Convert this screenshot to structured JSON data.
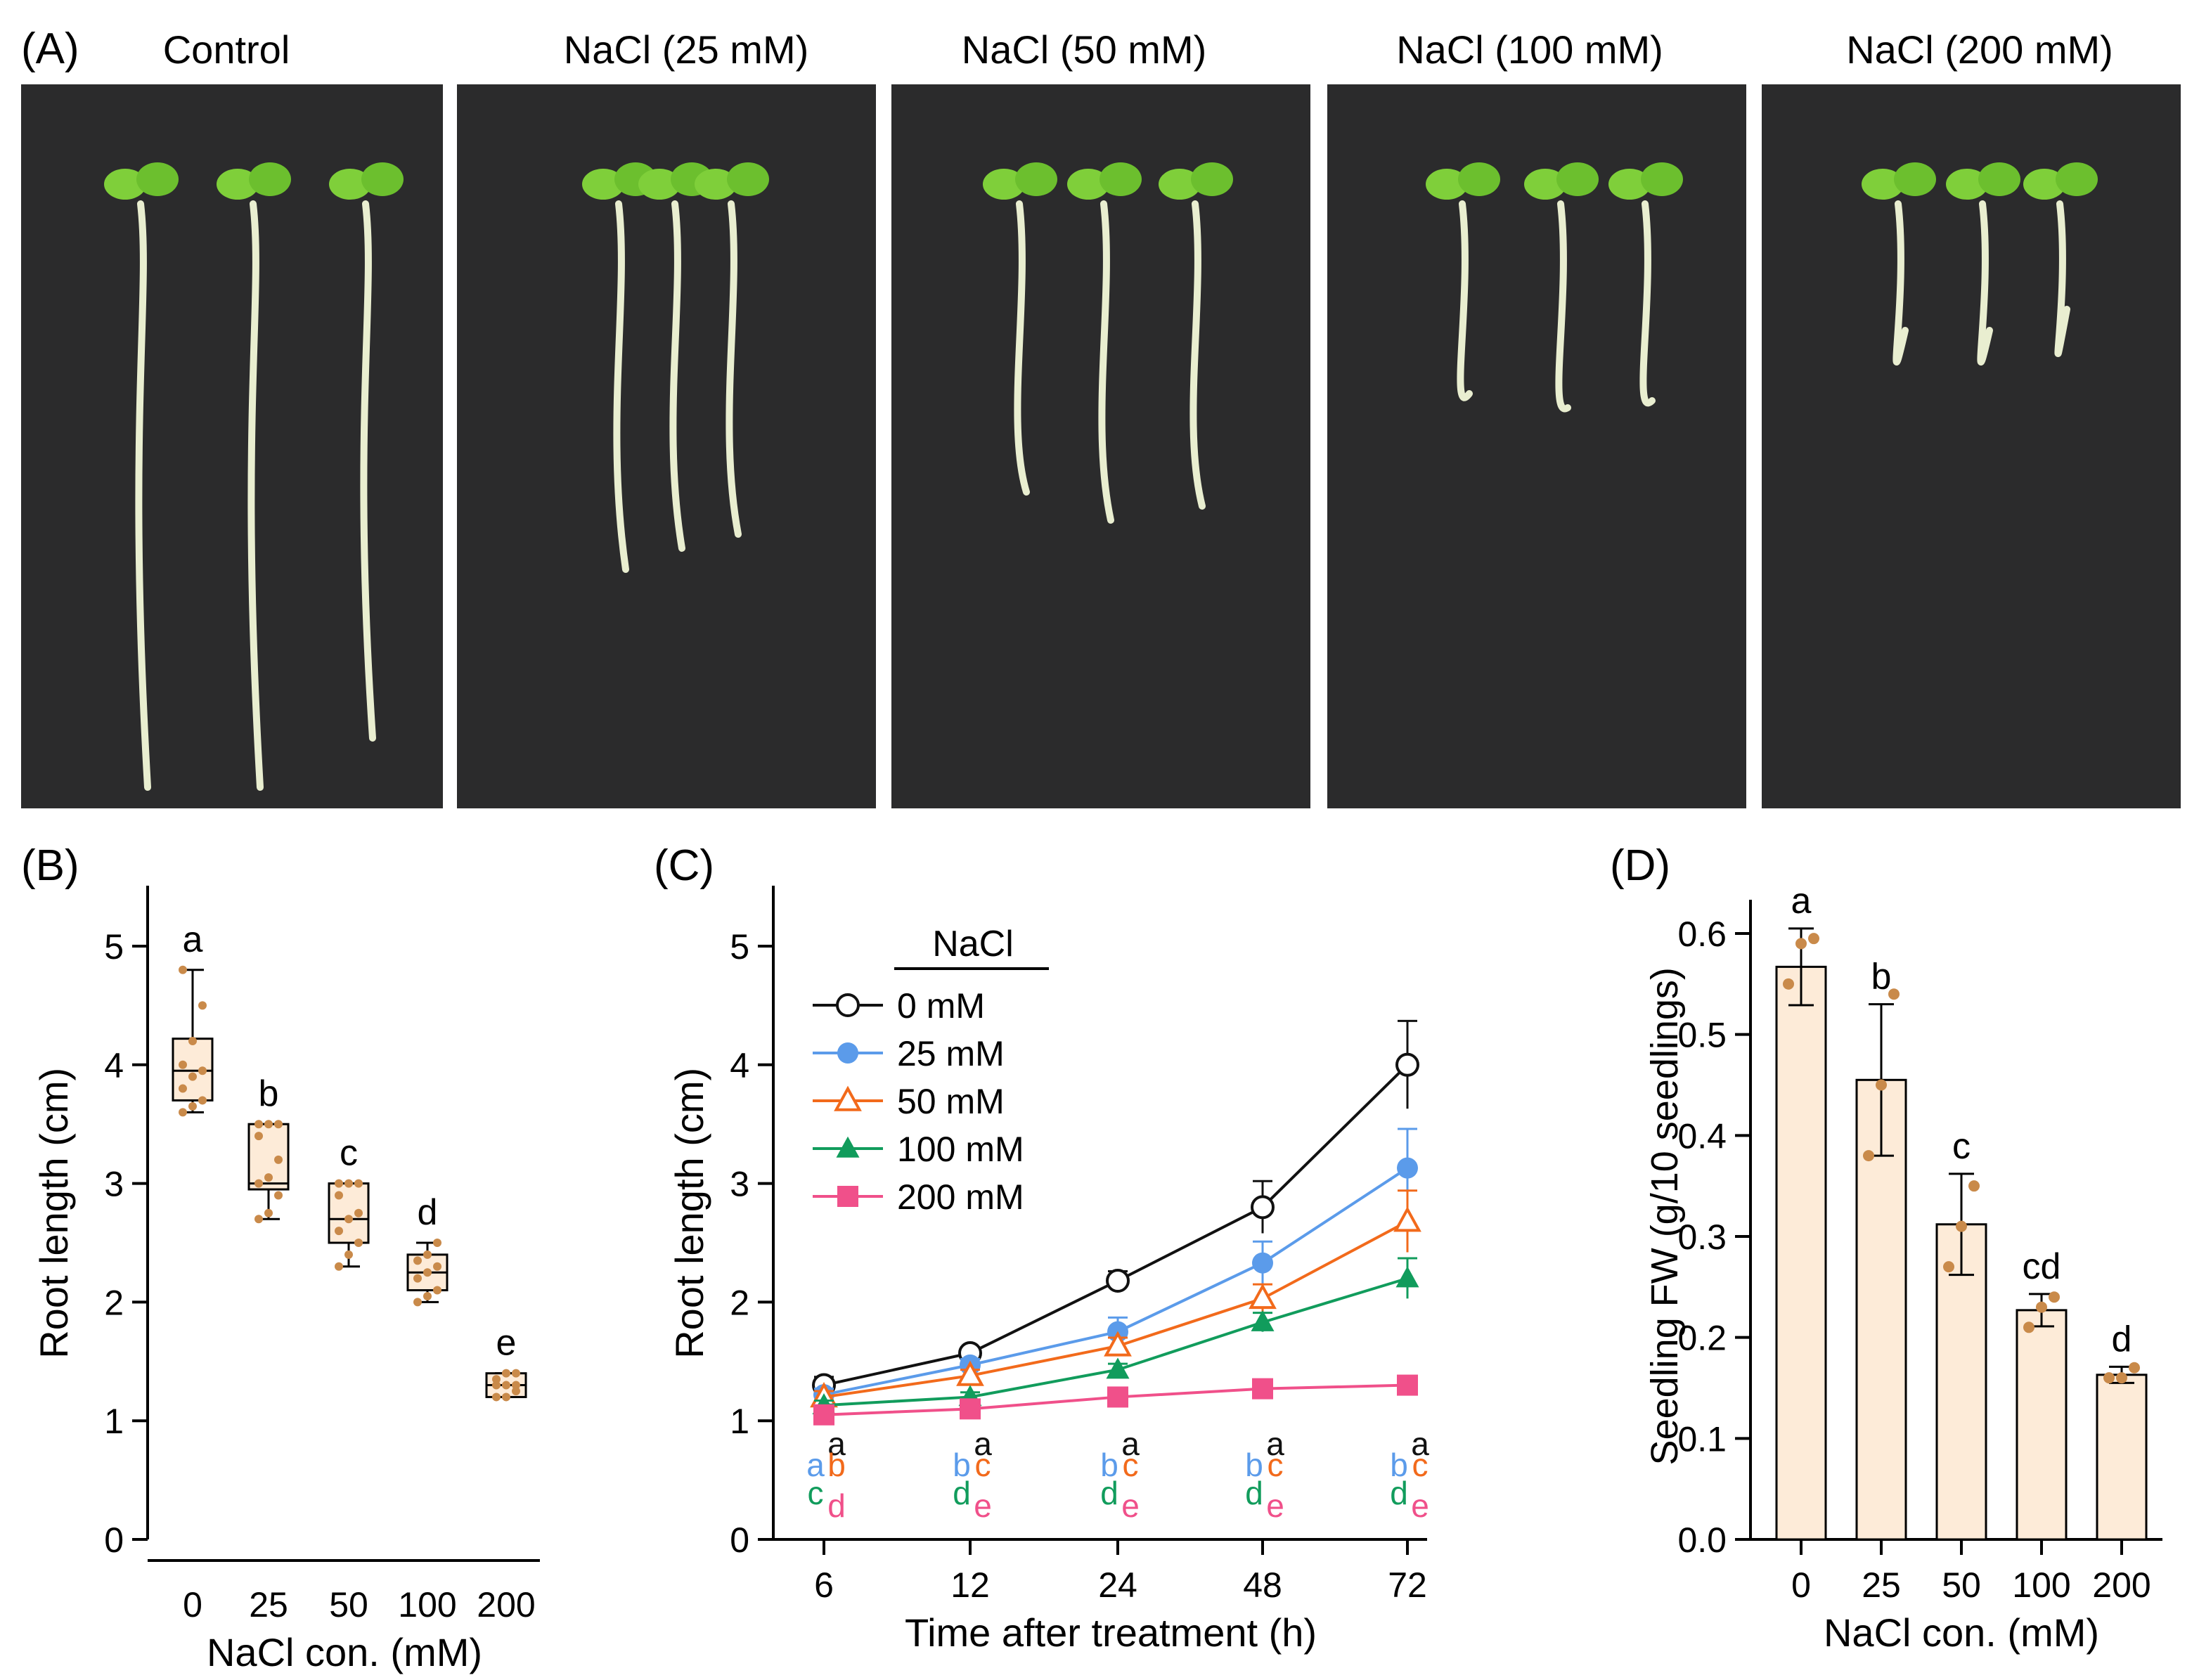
{
  "panelA": {
    "label": "(A)",
    "headers": [
      "Control",
      "NaCl (25 mM)",
      "NaCl (50 mM)",
      "NaCl (100 mM)",
      "NaCl (200 mM)"
    ]
  },
  "colors": {
    "s0": "#111111",
    "s25": "#5b9bea",
    "s50": "#f26a1b",
    "s100": "#119c5c",
    "s200": "#f0508a",
    "box_fill": "#fdebd8",
    "dot": "#c98a4a",
    "photo_bg": "#2b2b2c",
    "leaf": "#7fcf3a",
    "root": "#e9eed0"
  },
  "chart_data": [
    {
      "panel": "(B)",
      "type": "box",
      "categories": [
        "0",
        "25",
        "50",
        "100",
        "200"
      ],
      "xlabel": "NaCl con. (mM)",
      "ylabel": "Root length (cm)",
      "ylim": [
        0,
        5.5
      ],
      "yticks": [
        "0",
        "1",
        "2",
        "3",
        "4",
        "5"
      ],
      "boxes": [
        {
          "min": 3.6,
          "q1": 3.7,
          "median": 3.95,
          "q3": 4.22,
          "max": 4.8,
          "letter": "a",
          "points": [
            3.6,
            3.65,
            3.7,
            3.8,
            3.9,
            3.95,
            4.0,
            4.2,
            4.5,
            4.8
          ]
        },
        {
          "min": 2.7,
          "q1": 2.95,
          "median": 3.0,
          "q3": 3.5,
          "max": 3.5,
          "letter": "b",
          "points": [
            2.7,
            2.75,
            2.9,
            3.0,
            3.05,
            3.2,
            3.4,
            3.5,
            3.5,
            3.5
          ]
        },
        {
          "min": 2.3,
          "q1": 2.5,
          "median": 2.7,
          "q3": 3.0,
          "max": 3.0,
          "letter": "c",
          "points": [
            2.3,
            2.4,
            2.5,
            2.6,
            2.7,
            2.75,
            2.9,
            3.0,
            3.0,
            3.0
          ]
        },
        {
          "min": 2.0,
          "q1": 2.1,
          "median": 2.25,
          "q3": 2.4,
          "max": 2.5,
          "letter": "d",
          "points": [
            2.0,
            2.05,
            2.1,
            2.2,
            2.25,
            2.3,
            2.35,
            2.4,
            2.5
          ]
        },
        {
          "min": 1.2,
          "q1": 1.2,
          "median": 1.3,
          "q3": 1.4,
          "max": 1.4,
          "letter": "e",
          "points": [
            1.2,
            1.2,
            1.25,
            1.3,
            1.3,
            1.3,
            1.35,
            1.4,
            1.4
          ]
        }
      ]
    },
    {
      "panel": "(C)",
      "type": "line",
      "x": [
        "6",
        "12",
        "24",
        "48",
        "72"
      ],
      "xlabel": "Time after treatment (h)",
      "ylabel": "Root length (cm)",
      "ylim": [
        0,
        5.5
      ],
      "yticks": [
        "0",
        "1",
        "2",
        "3",
        "4",
        "5"
      ],
      "legend_title": "NaCl",
      "legend_position": "top-left",
      "series": [
        {
          "name": "0 mM",
          "marker": "circle-open",
          "color": "#111111",
          "values": [
            1.3,
            1.57,
            2.18,
            2.8,
            4.0
          ],
          "err": [
            0.07,
            0.05,
            0.08,
            0.22,
            0.37
          ],
          "letters": [
            "a",
            "a",
            "a",
            "a",
            "a"
          ]
        },
        {
          "name": "25 mM",
          "marker": "circle-filled",
          "color": "#5b9bea",
          "values": [
            1.22,
            1.47,
            1.75,
            2.33,
            3.13
          ],
          "err": [
            0.05,
            0.05,
            0.12,
            0.18,
            0.33
          ],
          "letters": [
            "a",
            "b",
            "b",
            "b",
            "b"
          ]
        },
        {
          "name": "50 mM",
          "marker": "triangle-open",
          "color": "#f26a1b",
          "values": [
            1.2,
            1.38,
            1.63,
            2.03,
            2.68
          ],
          "err": [
            0.05,
            0.05,
            0.07,
            0.12,
            0.26
          ],
          "letters": [
            "b",
            "c",
            "c",
            "c",
            "c"
          ]
        },
        {
          "name": "100 mM",
          "marker": "triangle-filled",
          "color": "#119c5c",
          "values": [
            1.13,
            1.2,
            1.43,
            1.83,
            2.2
          ],
          "err": [
            0.04,
            0.04,
            0.05,
            0.08,
            0.17
          ],
          "letters": [
            "c",
            "d",
            "d",
            "d",
            "d"
          ]
        },
        {
          "name": "200 mM",
          "marker": "square-filled",
          "color": "#f0508a",
          "values": [
            1.05,
            1.1,
            1.2,
            1.27,
            1.3
          ],
          "err": [
            0.03,
            0.03,
            0.03,
            0.03,
            0.03
          ],
          "letters": [
            "d",
            "e",
            "e",
            "e",
            "e"
          ]
        }
      ]
    },
    {
      "panel": "(D)",
      "type": "bar",
      "categories": [
        "0",
        "25",
        "50",
        "100",
        "200"
      ],
      "xlabel": "NaCl con. (mM)",
      "ylabel": "Seedling FW (g/10 seedlings)",
      "ylim": [
        0,
        0.65
      ],
      "yticks": [
        "0.0",
        "0.1",
        "0.2",
        "0.3",
        "0.4",
        "0.5",
        "0.6"
      ],
      "values": [
        0.567,
        0.455,
        0.312,
        0.227,
        0.163
      ],
      "err": [
        0.038,
        0.075,
        0.05,
        0.016,
        0.008
      ],
      "letters": [
        "a",
        "b",
        "c",
        "cd",
        "d"
      ],
      "points": [
        [
          0.55,
          0.59,
          0.595
        ],
        [
          0.38,
          0.45,
          0.54
        ],
        [
          0.27,
          0.31,
          0.35
        ],
        [
          0.21,
          0.23,
          0.24
        ],
        [
          0.16,
          0.16,
          0.17
        ]
      ]
    }
  ]
}
